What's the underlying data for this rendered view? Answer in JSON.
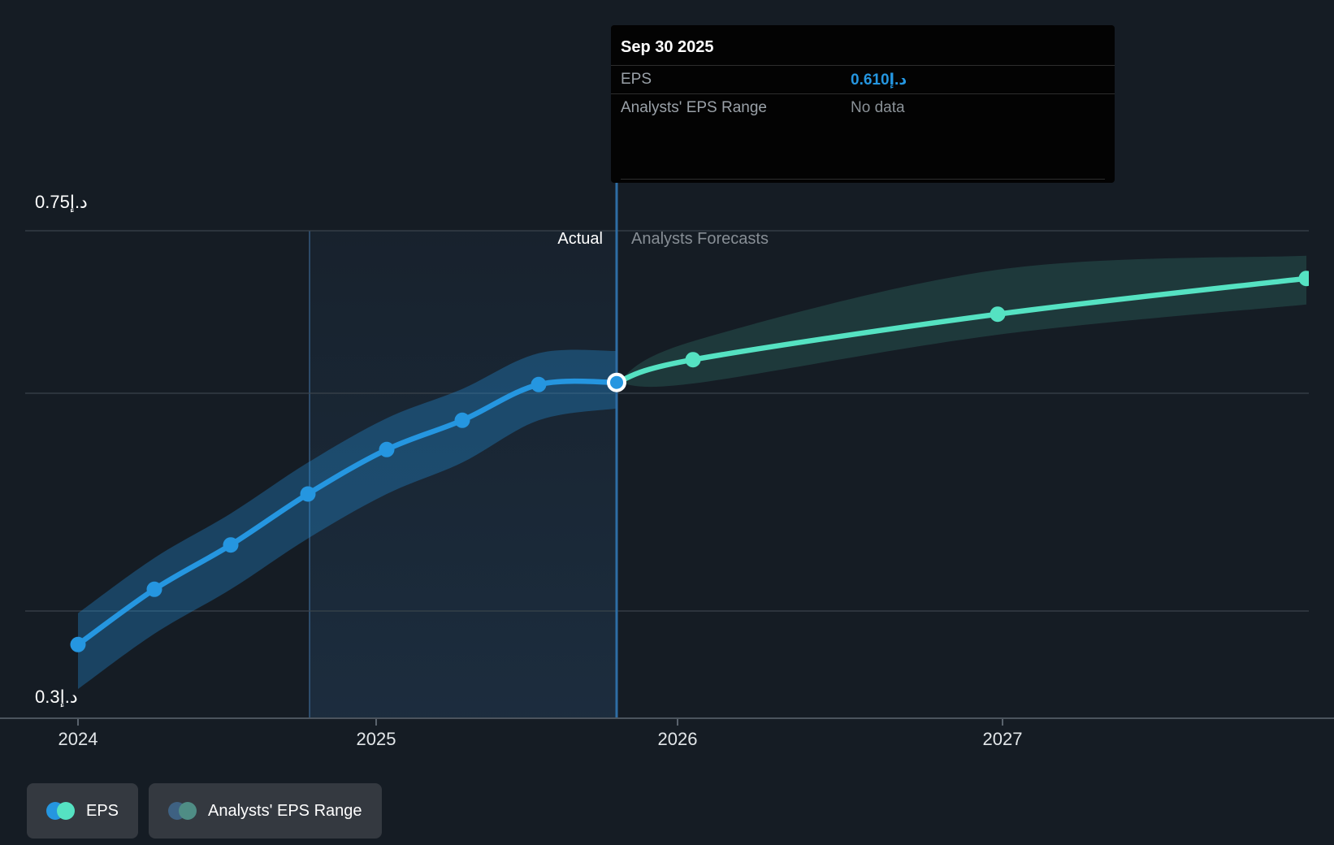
{
  "tooltip": {
    "title": "Sep 30 2025",
    "rows": [
      {
        "label": "EPS",
        "value": "0.610د.إ"
      },
      {
        "label": "Analysts' EPS Range",
        "value": "No data"
      }
    ]
  },
  "annotations": {
    "actual": "Actual",
    "forecast": "Analysts Forecasts"
  },
  "legend": [
    {
      "label": "EPS",
      "colors": [
        "#2596e0",
        "#55e2c2"
      ]
    },
    {
      "label": "Analysts' EPS Range",
      "colors": [
        "#3e6182",
        "#4f8d85"
      ]
    }
  ],
  "chart_data": {
    "type": "line",
    "x_tick_labels": [
      "2024",
      "2025",
      "2026",
      "2027"
    ],
    "y_axis": {
      "max_label": "0.75د.إ",
      "min_label": "0.3د.إ",
      "min": 0.3,
      "max": 0.75,
      "grid": true
    },
    "divider_date": "2025-09-30",
    "legend_position": "bottom-left",
    "series": [
      {
        "name": "EPS (actual)",
        "color": "#2596e0",
        "points": [
          {
            "date": "2023-12-31",
            "value": 0.368
          },
          {
            "date": "2024-03-31",
            "value": 0.419
          },
          {
            "date": "2024-06-30",
            "value": 0.46
          },
          {
            "date": "2024-09-30",
            "value": 0.507
          },
          {
            "date": "2024-12-31",
            "value": 0.548
          },
          {
            "date": "2025-03-31",
            "value": 0.575
          },
          {
            "date": "2025-06-30",
            "value": 0.608
          },
          {
            "date": "2025-09-30",
            "value": 0.61
          }
        ]
      },
      {
        "name": "EPS (analysts forecast)",
        "color": "#55e2c2",
        "points": [
          {
            "date": "2025-09-30",
            "value": 0.61
          },
          {
            "date": "2025-12-31",
            "value": 0.631
          },
          {
            "date": "2026-12-31",
            "value": 0.673
          },
          {
            "date": "2027-12-31",
            "value": 0.706
          }
        ]
      }
    ],
    "bands": [
      {
        "name": "EPS actual band",
        "color": "rgba(37,150,224,0.33)",
        "points": [
          {
            "date": "2023-12-31",
            "upper": 0.397,
            "lower": 0.327
          },
          {
            "date": "2024-03-31",
            "upper": 0.448,
            "lower": 0.378
          },
          {
            "date": "2024-06-30",
            "upper": 0.489,
            "lower": 0.419
          },
          {
            "date": "2024-09-30",
            "upper": 0.536,
            "lower": 0.466
          },
          {
            "date": "2024-12-31",
            "upper": 0.577,
            "lower": 0.507
          },
          {
            "date": "2025-03-31",
            "upper": 0.604,
            "lower": 0.536
          },
          {
            "date": "2025-06-30",
            "upper": 0.637,
            "lower": 0.575
          },
          {
            "date": "2025-09-30",
            "upper": 0.639,
            "lower": 0.586
          }
        ]
      },
      {
        "name": "Analysts' EPS range band",
        "color": "rgba(85,226,194,0.15)",
        "points": [
          {
            "date": "2025-09-30",
            "upper": 0.61,
            "lower": 0.61
          },
          {
            "date": "2025-12-31",
            "upper": 0.648,
            "lower": 0.609
          },
          {
            "date": "2026-12-31",
            "upper": 0.714,
            "lower": 0.654
          },
          {
            "date": "2027-12-31",
            "upper": 0.727,
            "lower": 0.682
          }
        ]
      }
    ]
  }
}
